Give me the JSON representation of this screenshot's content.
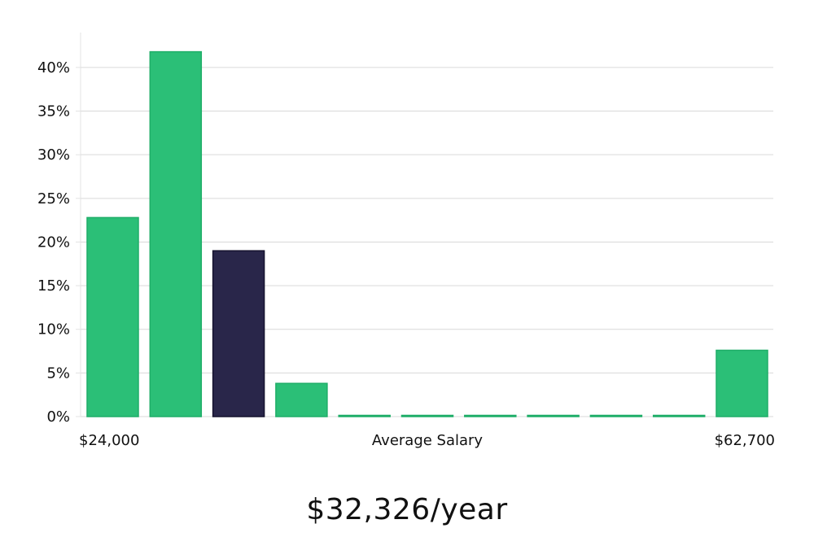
{
  "chart_data": {
    "type": "bar",
    "xlabel": "Average Salary",
    "x_min_label": "$24,000",
    "x_max_label": "$62,700",
    "ylim": [
      0,
      44
    ],
    "yticks": [
      0,
      5,
      10,
      15,
      20,
      25,
      30,
      35,
      40
    ],
    "ytick_labels": [
      "0%",
      "5%",
      "10%",
      "15%",
      "20%",
      "25%",
      "30%",
      "35%",
      "40%"
    ],
    "values": [
      22.8,
      41.8,
      19.0,
      3.8,
      0.1,
      0.1,
      0.1,
      0.1,
      0.1,
      0.1,
      7.6
    ],
    "highlight_index": 2,
    "grid": true,
    "colors": {
      "bar": "#2bbf77",
      "bar_edge": "#1fae68",
      "highlight": "#29264a",
      "highlight_edge": "#15122e",
      "grid": "#d9d9d9",
      "axis": "#e3e3e3"
    }
  },
  "summary": {
    "salary_text": "$32,326/year"
  }
}
